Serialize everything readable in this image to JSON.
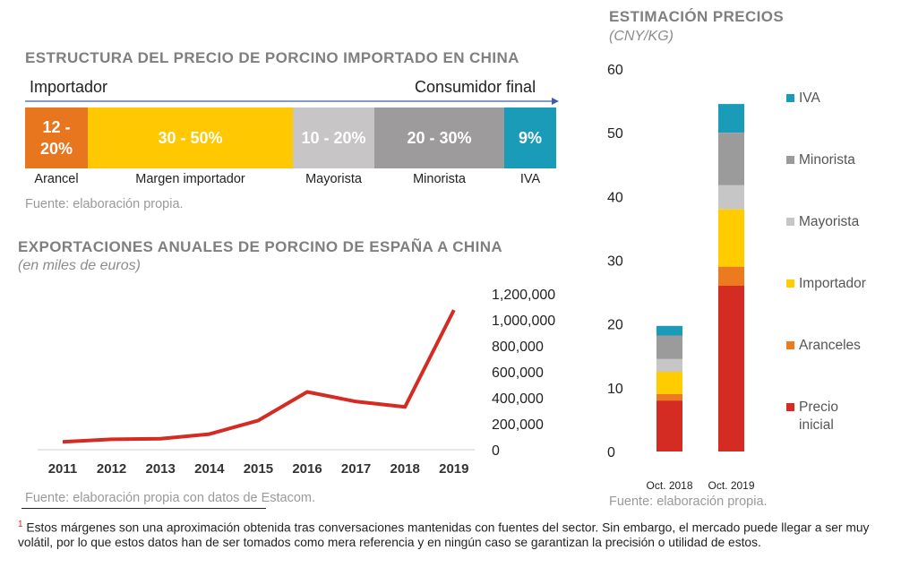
{
  "structure": {
    "title": "ESTRUCTURA DEL PRECIO DE PORCINO IMPORTADO EN CHINA",
    "arrow_start": "Importador",
    "arrow_end": "Consumidor final",
    "source": "Fuente: elaboración propia."
  },
  "exports": {
    "title": "EXPORTACIONES ANUALES DE PORCINO DE ESPAÑA A CHINA",
    "subtitle": "(en miles de euros)",
    "source": "Fuente: elaboración propia con datos de Estacom."
  },
  "prices": {
    "title": "ESTIMACIÓN PRECIOS",
    "subtitle": "(CNY/KG)",
    "source": "Fuente: elaboración propia."
  },
  "footnote": {
    "marker": "1",
    "text": "Estos márgenes son una aproximación obtenida tras conversaciones mantenidas con fuentes del sector. Sin embargo, el mercado puede llegar a ser muy volátil, por lo que estos datos han de ser tomados como mera referencia y en ningún caso se garantizan la precisión  o utilidad de estos."
  },
  "chart_data": [
    {
      "type": "bar",
      "orientation": "horizontal-stacked",
      "categories": [
        "Arancel",
        "Margen importador",
        "Mayorista",
        "Minorista",
        "IVA"
      ],
      "segment_labels": [
        "12 - 20%",
        "30 - 50%",
        "10 - 20%",
        "20 - 30%",
        "9%"
      ],
      "ranges": [
        [
          12,
          20
        ],
        [
          30,
          50
        ],
        [
          10,
          20
        ],
        [
          20,
          30
        ],
        [
          9,
          9
        ]
      ],
      "colors": [
        "#e8761e",
        "#ffc800",
        "#c7c5c6",
        "#9d9b9c",
        "#1a9bb7"
      ]
    },
    {
      "type": "line",
      "x": [
        "2011",
        "2012",
        "2013",
        "2014",
        "2015",
        "2016",
        "2017",
        "2018",
        "2019"
      ],
      "values": [
        60000,
        80000,
        85000,
        120000,
        225000,
        445000,
        370000,
        330000,
        1075000
      ],
      "ylim": [
        0,
        1200000
      ],
      "yticks": [
        "0",
        "200,000",
        "400,000",
        "600,000",
        "800,000",
        "1,000,000",
        "1,200,000"
      ],
      "color": "#d42b22"
    },
    {
      "type": "bar",
      "orientation": "vertical-stacked",
      "categories": [
        "Oct. 2018",
        "Oct. 2019"
      ],
      "ylim": [
        0,
        60
      ],
      "yticks": [
        "0",
        "10",
        "20",
        "30",
        "40",
        "50",
        "60"
      ],
      "series": [
        {
          "name": "Precio inicial",
          "values": [
            8,
            26
          ],
          "color": "#d42b22"
        },
        {
          "name": "Aranceles",
          "values": [
            1,
            3
          ],
          "color": "#ec7a1f"
        },
        {
          "name": "Importador",
          "values": [
            3.5,
            9
          ],
          "color": "#ffcc00"
        },
        {
          "name": "Mayorista",
          "values": [
            2,
            3.8
          ],
          "color": "#c6c6c6"
        },
        {
          "name": "Minorista",
          "values": [
            3.7,
            8.2
          ],
          "color": "#9b9b9b"
        },
        {
          "name": "IVA",
          "values": [
            1.5,
            4.5
          ],
          "color": "#1a9bb7"
        }
      ],
      "legend_order": [
        "IVA",
        "Minorista",
        "Mayorista",
        "Importador",
        "Aranceles",
        "Precio inicial"
      ],
      "legend_position": "right"
    }
  ]
}
